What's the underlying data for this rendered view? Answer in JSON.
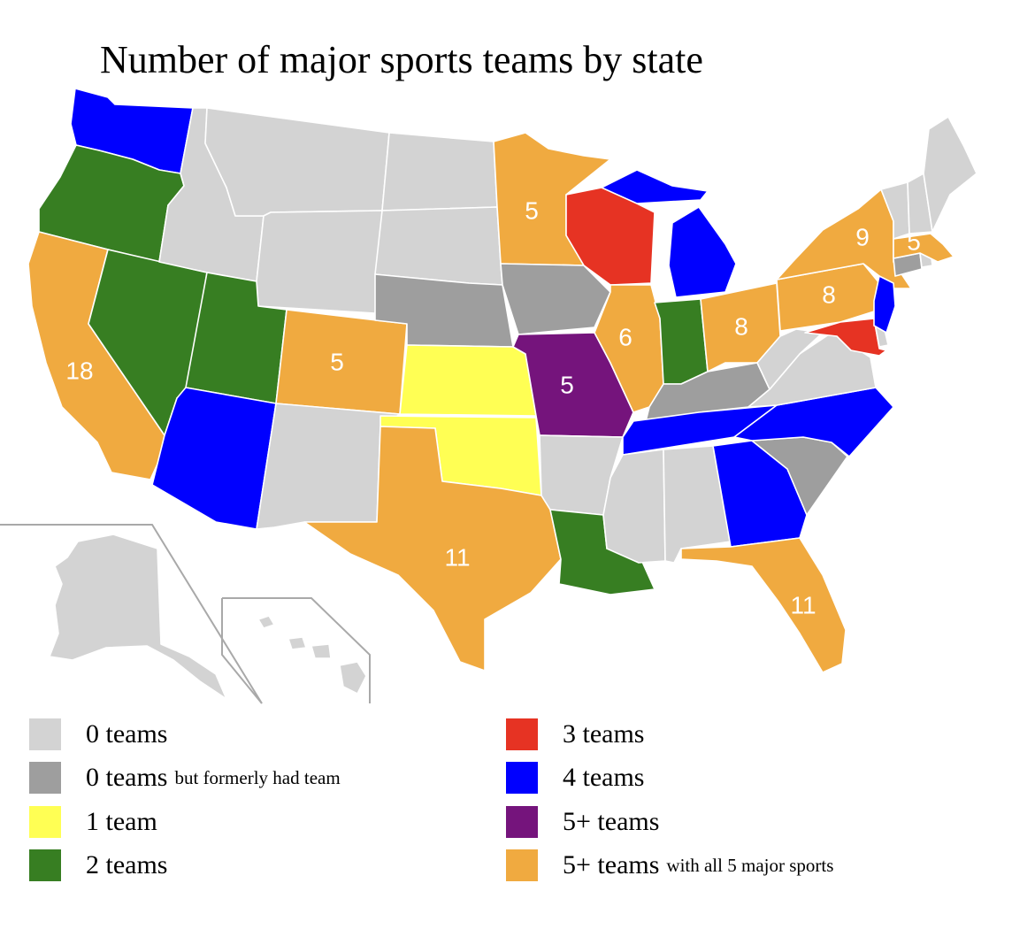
{
  "title": "Number of major sports teams by state",
  "colors": {
    "zero": "#d3d3d3",
    "zero_former": "#9e9e9e",
    "one": "#ffff54",
    "two": "#377e22",
    "three": "#e63323",
    "four": "#0000ff",
    "five_plus": "#75147c",
    "five_plus_all": "#f0aa40"
  },
  "legend": [
    {
      "key": "zero",
      "label": "0 teams",
      "note": ""
    },
    {
      "key": "zero_former",
      "label": "0 teams",
      "note": "but formerly had team"
    },
    {
      "key": "one",
      "label": "1 team",
      "note": ""
    },
    {
      "key": "two",
      "label": "2 teams",
      "note": ""
    },
    {
      "key": "three",
      "label": "3 teams",
      "note": ""
    },
    {
      "key": "four",
      "label": "4 teams",
      "note": ""
    },
    {
      "key": "five_plus",
      "label": "5+ teams",
      "note": ""
    },
    {
      "key": "five_plus_all",
      "label": "5+ teams",
      "note": "with all 5 major sports"
    }
  ],
  "states": [
    {
      "code": "WA",
      "category": "four",
      "label": ""
    },
    {
      "code": "OR",
      "category": "two",
      "label": ""
    },
    {
      "code": "CA",
      "category": "five_plus_all",
      "label": "18"
    },
    {
      "code": "NV",
      "category": "two",
      "label": ""
    },
    {
      "code": "ID",
      "category": "zero",
      "label": ""
    },
    {
      "code": "MT",
      "category": "zero",
      "label": ""
    },
    {
      "code": "WY",
      "category": "zero",
      "label": ""
    },
    {
      "code": "UT",
      "category": "two",
      "label": ""
    },
    {
      "code": "AZ",
      "category": "four",
      "label": ""
    },
    {
      "code": "CO",
      "category": "five_plus_all",
      "label": "5"
    },
    {
      "code": "NM",
      "category": "zero",
      "label": ""
    },
    {
      "code": "ND",
      "category": "zero",
      "label": ""
    },
    {
      "code": "SD",
      "category": "zero",
      "label": ""
    },
    {
      "code": "NE",
      "category": "zero_former",
      "label": ""
    },
    {
      "code": "KS",
      "category": "one",
      "label": ""
    },
    {
      "code": "OK",
      "category": "one",
      "label": ""
    },
    {
      "code": "TX",
      "category": "five_plus_all",
      "label": "11"
    },
    {
      "code": "MN",
      "category": "five_plus_all",
      "label": "5"
    },
    {
      "code": "IA",
      "category": "zero_former",
      "label": ""
    },
    {
      "code": "MO",
      "category": "five_plus",
      "label": "5"
    },
    {
      "code": "AR",
      "category": "zero",
      "label": ""
    },
    {
      "code": "LA",
      "category": "two",
      "label": ""
    },
    {
      "code": "WI",
      "category": "three",
      "label": ""
    },
    {
      "code": "IL",
      "category": "five_plus_all",
      "label": "6"
    },
    {
      "code": "MI",
      "category": "four",
      "label": ""
    },
    {
      "code": "IN",
      "category": "two",
      "label": ""
    },
    {
      "code": "OH",
      "category": "five_plus_all",
      "label": "8"
    },
    {
      "code": "KY",
      "category": "zero_former",
      "label": ""
    },
    {
      "code": "TN",
      "category": "four",
      "label": ""
    },
    {
      "code": "MS",
      "category": "zero",
      "label": ""
    },
    {
      "code": "AL",
      "category": "zero",
      "label": ""
    },
    {
      "code": "GA",
      "category": "four",
      "label": ""
    },
    {
      "code": "FL",
      "category": "five_plus_all",
      "label": "11"
    },
    {
      "code": "SC",
      "category": "zero_former",
      "label": ""
    },
    {
      "code": "NC",
      "category": "four",
      "label": ""
    },
    {
      "code": "VA",
      "category": "zero",
      "label": ""
    },
    {
      "code": "WV",
      "category": "zero",
      "label": ""
    },
    {
      "code": "PA",
      "category": "five_plus_all",
      "label": "8"
    },
    {
      "code": "NY",
      "category": "five_plus_all",
      "label": "9"
    },
    {
      "code": "MD",
      "category": "three",
      "label": ""
    },
    {
      "code": "DE",
      "category": "zero",
      "label": ""
    },
    {
      "code": "NJ",
      "category": "four",
      "label": ""
    },
    {
      "code": "CT",
      "category": "zero_former",
      "label": ""
    },
    {
      "code": "RI",
      "category": "zero",
      "label": ""
    },
    {
      "code": "MA",
      "category": "five_plus_all",
      "label": "5"
    },
    {
      "code": "VT",
      "category": "zero",
      "label": ""
    },
    {
      "code": "NH",
      "category": "zero",
      "label": ""
    },
    {
      "code": "ME",
      "category": "zero",
      "label": ""
    },
    {
      "code": "AK",
      "category": "zero",
      "label": ""
    },
    {
      "code": "HI",
      "category": "zero",
      "label": ""
    }
  ]
}
